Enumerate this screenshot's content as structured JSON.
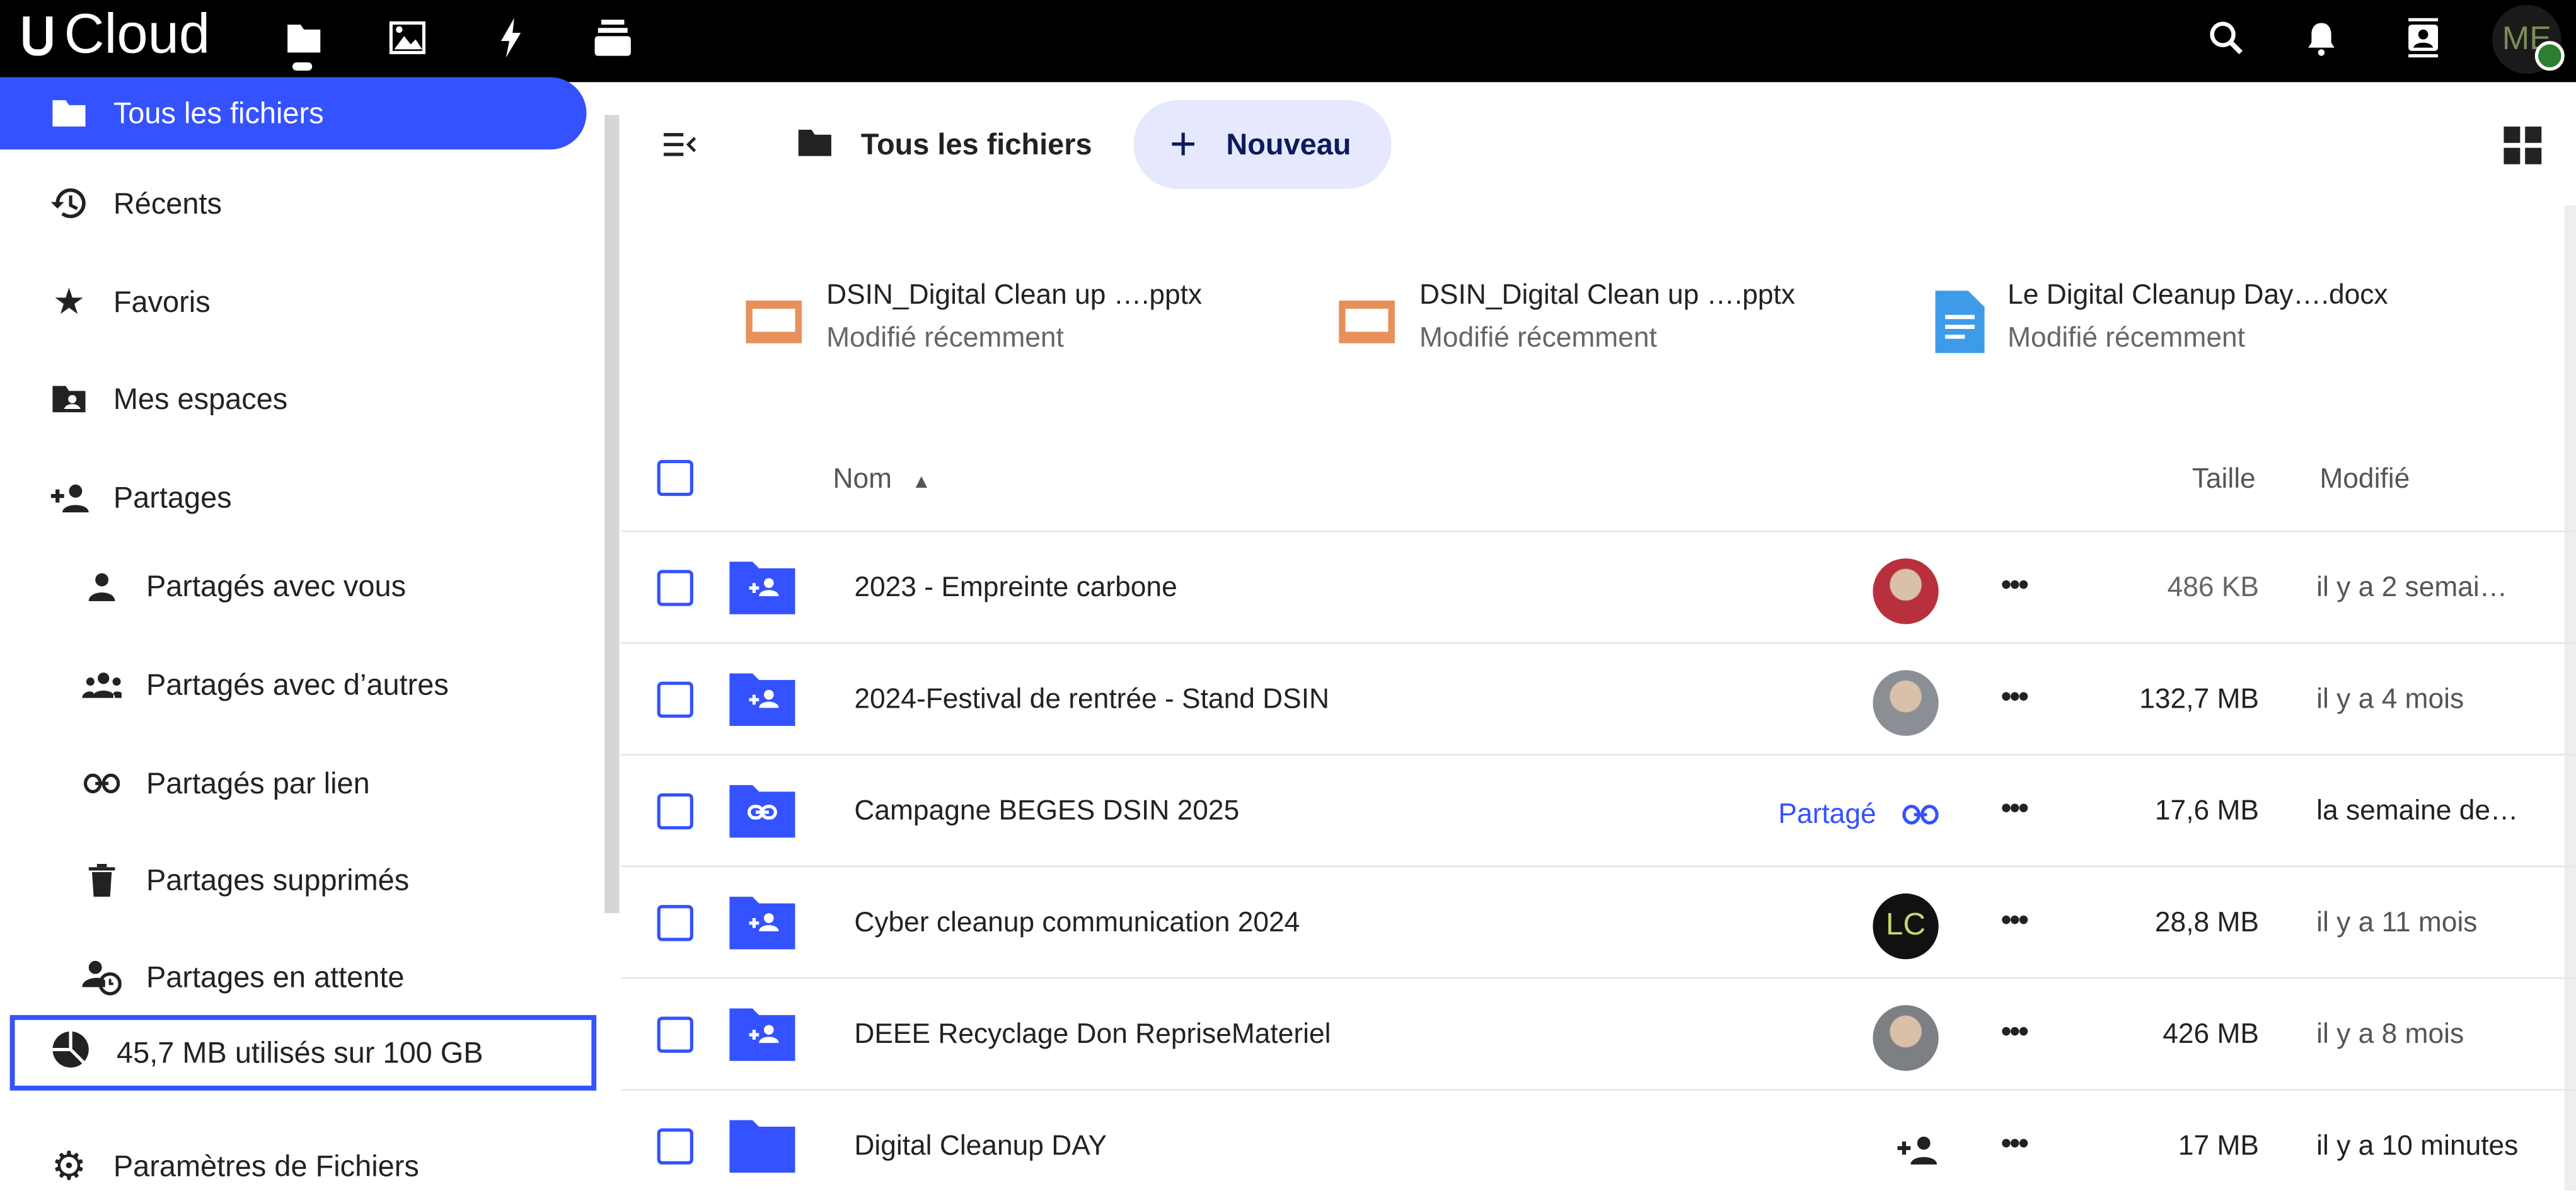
{
  "app": {
    "name": "Cloud"
  },
  "topbar": {
    "nav_icons": [
      "folder-icon",
      "image-icon",
      "lightning-icon",
      "stack-icon"
    ],
    "right_icons": [
      "search-icon",
      "bell-icon",
      "contacts-icon"
    ],
    "avatar_initials": "ME",
    "status_color": "#2e7d32"
  },
  "sidebar": {
    "items": [
      {
        "label": "Tous les fichiers",
        "icon": "folder-icon",
        "active": true
      },
      {
        "label": "Récents",
        "icon": "history-icon"
      },
      {
        "label": "Favoris",
        "icon": "star-icon"
      },
      {
        "label": "Mes espaces",
        "icon": "account-folder-icon"
      },
      {
        "label": "Partages",
        "icon": "person-add-icon"
      },
      {
        "label": "Partagés avec vous",
        "icon": "person-icon"
      },
      {
        "label": "Partagés avec d’autres",
        "icon": "group-icon"
      },
      {
        "label": "Partagés par lien",
        "icon": "link-icon"
      },
      {
        "label": "Partages supprimés",
        "icon": "trash-icon"
      },
      {
        "label": "Partages en attente",
        "icon": "person-clock-icon"
      }
    ],
    "storage": "45,7 MB utilisés sur 100 GB",
    "settings": "Paramètres de Fichiers"
  },
  "toolbar": {
    "breadcrumb": "Tous les fichiers",
    "new_label": "Nouveau"
  },
  "recent": [
    {
      "name": "DSIN_Digital Clean up ….pptx",
      "sub": "Modifié récemment",
      "type": "pptx"
    },
    {
      "name": "DSIN_Digital Clean up ….pptx",
      "sub": "Modifié récemment",
      "type": "pptx"
    },
    {
      "name": "Le Digital Cleanup Day….docx",
      "sub": "Modifié récemment",
      "type": "docx"
    }
  ],
  "table": {
    "headers": {
      "name": "Nom",
      "size": "Taille",
      "modified": "Modifié"
    },
    "rows": [
      {
        "name": "2023 - Empreinte carbone",
        "share": "avatar",
        "size": "486 KB",
        "modified": "il y a 2 semai…",
        "icon": "shared-folder-icon"
      },
      {
        "name": "2024-Festival de rentrée - Stand DSIN",
        "share": "avatar",
        "size": "132,7 MB",
        "modified": "il y a 4 mois",
        "icon": "shared-folder-icon"
      },
      {
        "name": "Campagne BEGES DSIN 2025",
        "share": "link",
        "share_label": "Partagé",
        "size": "17,6 MB",
        "modified": "la semaine de…",
        "icon": "link-folder-icon"
      },
      {
        "name": "Cyber cleanup communication 2024",
        "share": "initials",
        "initials": "LC",
        "size": "28,8 MB",
        "modified": "il y a 11 mois",
        "icon": "shared-folder-icon"
      },
      {
        "name": "DEEE Recyclage Don RepriseMateriel",
        "share": "avatar",
        "size": "426 MB",
        "modified": "il y a 8 mois",
        "icon": "shared-folder-icon"
      },
      {
        "name": "Digital Cleanup DAY",
        "share": "add",
        "size": "17 MB",
        "modified": "il y a 10 minutes",
        "icon": "folder-icon"
      }
    ]
  },
  "colors": {
    "accent": "#3452ff",
    "pptx": "#e8905a",
    "docx": "#3d9be9"
  }
}
